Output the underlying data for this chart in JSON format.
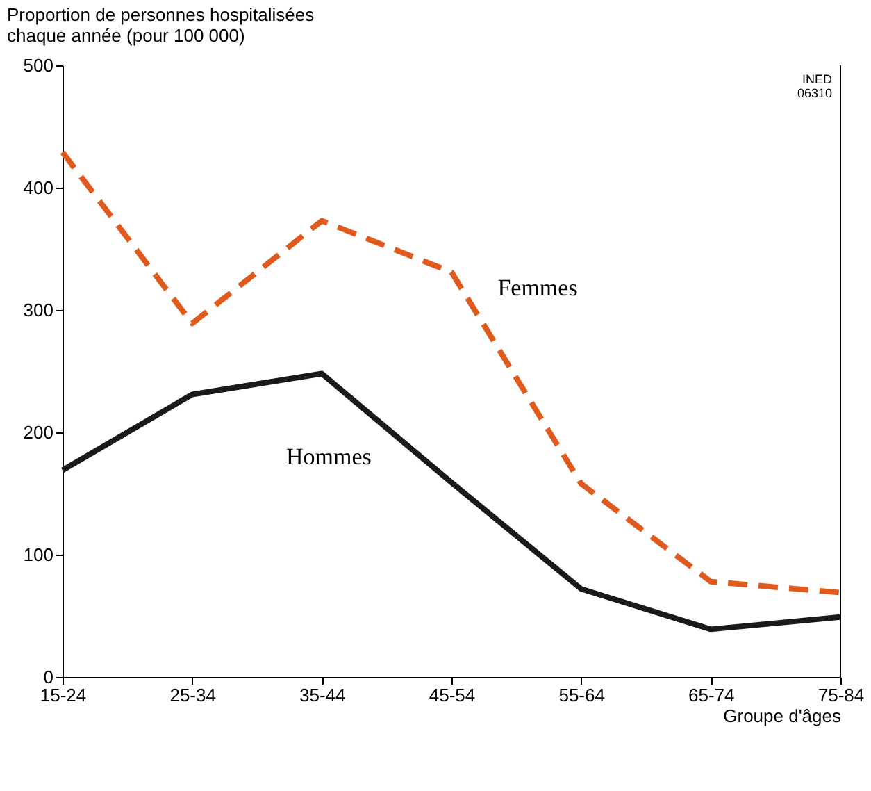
{
  "chart_data": {
    "type": "line",
    "ylabel": "Proportion de personnes hospitalisées chaque année (pour 100 000)",
    "xlabel": "Groupe d'âges",
    "annotations": [
      "INED 06310"
    ],
    "categories": [
      "15-24",
      "25-34",
      "35-44",
      "45-54",
      "55-64",
      "65-74",
      "75-84"
    ],
    "series": [
      {
        "name": "Femmes",
        "color": "#e05a1e",
        "line_style": "dashed",
        "values": [
          429,
          289,
          373,
          331,
          158,
          78,
          69
        ]
      },
      {
        "name": "Hommes",
        "color": "#1a1a1a",
        "line_style": "solid",
        "values": [
          169,
          231,
          248,
          159,
          72,
          39,
          49
        ]
      }
    ],
    "ylim": [
      0,
      500
    ],
    "yticks": [
      0,
      100,
      200,
      300,
      400,
      500
    ],
    "grid": false
  }
}
